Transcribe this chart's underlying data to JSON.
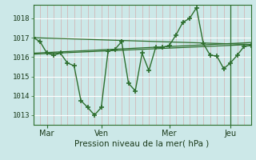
{
  "bg_color": "#cce8e8",
  "line_color": "#2d6e2d",
  "xlabel": "Pression niveau de la mer( hPa )",
  "ylim": [
    1012.5,
    1018.7
  ],
  "yticks": [
    1013,
    1014,
    1015,
    1016,
    1017,
    1018
  ],
  "xlim": [
    0,
    192
  ],
  "xtick_positions": [
    12,
    60,
    120,
    174
  ],
  "xtick_labels": [
    "Mar",
    "Ven",
    "Mer",
    "Jeu"
  ],
  "series1_x": [
    0,
    6,
    12,
    18,
    24,
    30,
    36,
    42,
    48,
    54,
    60,
    66,
    72,
    78,
    84,
    90,
    96,
    102,
    108,
    114,
    120,
    126,
    132,
    138,
    144,
    150,
    156,
    162,
    168,
    174,
    180,
    186,
    192
  ],
  "series1_y": [
    1017.0,
    1016.8,
    1016.2,
    1016.1,
    1016.2,
    1015.7,
    1015.55,
    1013.75,
    1013.4,
    1013.0,
    1013.4,
    1016.3,
    1016.4,
    1016.8,
    1014.65,
    1014.25,
    1016.2,
    1015.3,
    1016.5,
    1016.5,
    1016.6,
    1017.15,
    1017.8,
    1018.0,
    1018.55,
    1016.7,
    1016.1,
    1016.05,
    1015.4,
    1015.7,
    1016.1,
    1016.55,
    1016.6
  ],
  "series2_x": [
    0,
    192
  ],
  "series2_y": [
    1016.15,
    1016.65
  ],
  "series3_x": [
    0,
    192
  ],
  "series3_y": [
    1016.2,
    1016.75
  ],
  "series4_x": [
    0,
    192
  ],
  "series4_y": [
    1017.0,
    1016.65
  ],
  "jeu_line_x": 174
}
